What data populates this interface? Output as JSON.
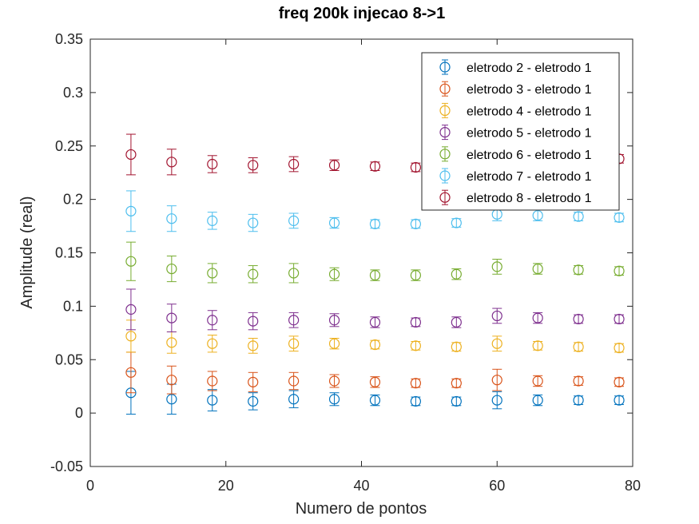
{
  "chart_data": {
    "type": "scatter",
    "title": "freq 200k injecao 8->1",
    "xlabel": "Numero de pontos",
    "ylabel": "Amplitude (real)",
    "xlim": [
      0,
      80
    ],
    "ylim": [
      -0.05,
      0.35
    ],
    "x_ticks": [
      0,
      20,
      40,
      60,
      80
    ],
    "y_ticks": [
      -0.05,
      0,
      0.05,
      0.1,
      0.15,
      0.2,
      0.25,
      0.3,
      0.35
    ],
    "x_tick_labels": [
      "0",
      "20",
      "40",
      "60",
      "80"
    ],
    "y_tick_labels": [
      "-0.05",
      "0",
      "0.05",
      "0.1",
      "0.15",
      "0.2",
      "0.25",
      "0.3",
      "0.35"
    ],
    "grid": false,
    "legend_position": "top-right",
    "error_bars": true,
    "x": [
      6,
      12,
      18,
      24,
      30,
      36,
      42,
      48,
      54,
      60,
      66,
      72,
      78
    ],
    "series": [
      {
        "name": "eletrodo 2 - eletrodo 1",
        "color": "#0072BD",
        "values": [
          0.019,
          0.013,
          0.012,
          0.011,
          0.013,
          0.013,
          0.012,
          0.011,
          0.011,
          0.012,
          0.012,
          0.012,
          0.012
        ],
        "errors": [
          0.02,
          0.014,
          0.01,
          0.008,
          0.008,
          0.006,
          0.005,
          0.004,
          0.004,
          0.008,
          0.005,
          0.004,
          0.004
        ]
      },
      {
        "name": "eletrodo 3 - eletrodo 1",
        "color": "#D95319",
        "values": [
          0.038,
          0.031,
          0.03,
          0.029,
          0.03,
          0.03,
          0.029,
          0.028,
          0.028,
          0.031,
          0.03,
          0.03,
          0.029
        ],
        "errors": [
          0.019,
          0.013,
          0.009,
          0.009,
          0.008,
          0.006,
          0.005,
          0.004,
          0.004,
          0.01,
          0.005,
          0.004,
          0.004
        ]
      },
      {
        "name": "eletrodo 4 - eletrodo 1",
        "color": "#EDB120",
        "values": [
          0.072,
          0.066,
          0.065,
          0.063,
          0.065,
          0.065,
          0.064,
          0.063,
          0.062,
          0.065,
          0.063,
          0.062,
          0.061
        ],
        "errors": [
          0.015,
          0.01,
          0.008,
          0.007,
          0.007,
          0.005,
          0.004,
          0.004,
          0.004,
          0.007,
          0.004,
          0.004,
          0.004
        ]
      },
      {
        "name": "eletrodo 5 - eletrodo 1",
        "color": "#7E2F8E",
        "values": [
          0.097,
          0.089,
          0.087,
          0.086,
          0.087,
          0.087,
          0.085,
          0.085,
          0.085,
          0.091,
          0.089,
          0.088,
          0.088
        ],
        "errors": [
          0.019,
          0.013,
          0.009,
          0.008,
          0.007,
          0.006,
          0.005,
          0.004,
          0.005,
          0.007,
          0.005,
          0.004,
          0.004
        ]
      },
      {
        "name": "eletrodo 6 - eletrodo 1",
        "color": "#77AC30",
        "values": [
          0.142,
          0.135,
          0.131,
          0.13,
          0.131,
          0.13,
          0.129,
          0.129,
          0.13,
          0.137,
          0.135,
          0.134,
          0.133
        ],
        "errors": [
          0.018,
          0.012,
          0.009,
          0.008,
          0.009,
          0.006,
          0.005,
          0.005,
          0.005,
          0.007,
          0.005,
          0.004,
          0.004
        ]
      },
      {
        "name": "eletrodo 7 - eletrodo 1",
        "color": "#4DBEEE",
        "values": [
          0.189,
          0.182,
          0.18,
          0.178,
          0.18,
          0.178,
          0.177,
          0.177,
          0.178,
          0.186,
          0.185,
          0.184,
          0.183
        ],
        "errors": [
          0.019,
          0.012,
          0.008,
          0.008,
          0.007,
          0.005,
          0.004,
          0.004,
          0.004,
          0.006,
          0.005,
          0.004,
          0.004
        ]
      },
      {
        "name": "eletrodo 8 - eletrodo 1",
        "color": "#A2142F",
        "values": [
          0.242,
          0.235,
          0.233,
          0.232,
          0.233,
          0.232,
          0.231,
          0.23,
          0.232,
          0.238,
          0.238,
          0.238,
          0.238
        ],
        "errors": [
          0.019,
          0.012,
          0.008,
          0.007,
          0.007,
          0.005,
          0.004,
          0.004,
          0.004,
          0.006,
          0.005,
          0.004,
          0.004
        ]
      }
    ]
  }
}
